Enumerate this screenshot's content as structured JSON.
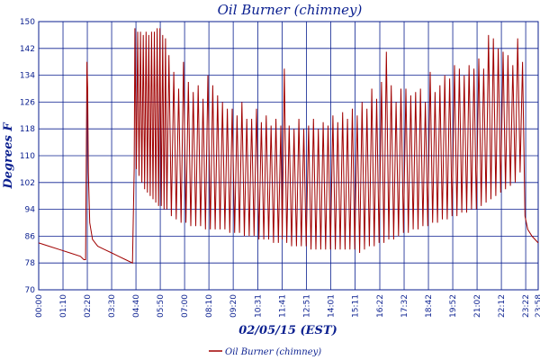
{
  "chart_data": {
    "type": "line",
    "title": "Oil Burner (chimney)",
    "xlabel": "02/05/15 (EST)",
    "ylabel": "Degrees F",
    "ylim": [
      70,
      150
    ],
    "yticks": [
      "150",
      "142",
      "134",
      "126",
      "118",
      "110",
      "102",
      "94",
      "86",
      "78",
      "70"
    ],
    "xticks": [
      "00:00",
      "01:10",
      "02:20",
      "03:30",
      "04:40",
      "05:50",
      "07:00",
      "08:10",
      "09:20",
      "10:31",
      "11:41",
      "12:51",
      "14:01",
      "15:11",
      "16:22",
      "17:32",
      "18:42",
      "19:52",
      "21:02",
      "22:12",
      "23:22",
      "23:58"
    ],
    "xlim": [
      "00:00",
      "23:58"
    ],
    "grid": true,
    "legend": "bottom-center",
    "colors": {
      "series": "#a00000",
      "grid": "#0a1f8f",
      "text": "#0a1f8f"
    },
    "series": [
      {
        "name": "Oil Burner (chimney)",
        "points": [
          [
            "00:00",
            84
          ],
          [
            "00:30",
            83
          ],
          [
            "01:00",
            82
          ],
          [
            "01:30",
            81
          ],
          [
            "02:00",
            80
          ],
          [
            "02:10",
            79
          ],
          [
            "02:15",
            79
          ],
          [
            "02:17",
            110
          ],
          [
            "02:19",
            138
          ],
          [
            "02:21",
            130
          ],
          [
            "02:23",
            105
          ],
          [
            "02:27",
            90
          ],
          [
            "02:35",
            85
          ],
          [
            "02:50",
            83
          ],
          [
            "03:10",
            82
          ],
          [
            "03:30",
            81
          ],
          [
            "03:50",
            80
          ],
          [
            "04:10",
            79
          ],
          [
            "04:30",
            78
          ],
          [
            "04:35",
            106
          ],
          [
            "04:37",
            148
          ],
          [
            "04:41",
            106
          ],
          [
            "04:45",
            147
          ],
          [
            "04:49",
            104
          ],
          [
            "04:53",
            147
          ],
          [
            "04:57",
            102
          ],
          [
            "05:01",
            146
          ],
          [
            "05:05",
            100
          ],
          [
            "05:09",
            147
          ],
          [
            "05:13",
            99
          ],
          [
            "05:17",
            146
          ],
          [
            "05:21",
            98
          ],
          [
            "05:25",
            147
          ],
          [
            "05:29",
            97
          ],
          [
            "05:33",
            147
          ],
          [
            "05:37",
            96
          ],
          [
            "05:41",
            148
          ],
          [
            "05:45",
            95
          ],
          [
            "05:49",
            148
          ],
          [
            "05:53",
            95
          ],
          [
            "05:57",
            146
          ],
          [
            "06:01",
            94
          ],
          [
            "06:05",
            145
          ],
          [
            "06:09",
            94
          ],
          [
            "06:15",
            140
          ],
          [
            "06:22",
            92
          ],
          [
            "06:29",
            135
          ],
          [
            "06:36",
            91
          ],
          [
            "06:43",
            130
          ],
          [
            "06:50",
            90
          ],
          [
            "06:57",
            138
          ],
          [
            "07:04",
            90
          ],
          [
            "07:11",
            132
          ],
          [
            "07:18",
            89
          ],
          [
            "07:25",
            129
          ],
          [
            "07:32",
            89
          ],
          [
            "07:39",
            131
          ],
          [
            "07:46",
            89
          ],
          [
            "07:53",
            127
          ],
          [
            "08:00",
            88
          ],
          [
            "08:07",
            134
          ],
          [
            "08:14",
            88
          ],
          [
            "08:21",
            131
          ],
          [
            "08:28",
            88
          ],
          [
            "08:35",
            128
          ],
          [
            "08:42",
            88
          ],
          [
            "08:49",
            126
          ],
          [
            "08:56",
            88
          ],
          [
            "09:03",
            124
          ],
          [
            "09:10",
            87
          ],
          [
            "09:17",
            124
          ],
          [
            "09:24",
            87
          ],
          [
            "09:31",
            122
          ],
          [
            "09:38",
            87
          ],
          [
            "09:45",
            126
          ],
          [
            "09:52",
            86
          ],
          [
            "09:59",
            121
          ],
          [
            "10:06",
            86
          ],
          [
            "10:13",
            121
          ],
          [
            "10:20",
            86
          ],
          [
            "10:27",
            124
          ],
          [
            "10:34",
            85
          ],
          [
            "10:41",
            120
          ],
          [
            "10:48",
            85
          ],
          [
            "10:55",
            122
          ],
          [
            "11:02",
            85
          ],
          [
            "11:09",
            119
          ],
          [
            "11:16",
            84
          ],
          [
            "11:23",
            121
          ],
          [
            "11:30",
            84
          ],
          [
            "11:37",
            119
          ],
          [
            "11:41",
            85
          ],
          [
            "11:47",
            136
          ],
          [
            "11:54",
            84
          ],
          [
            "12:01",
            119
          ],
          [
            "12:08",
            83
          ],
          [
            "12:15",
            118
          ],
          [
            "12:22",
            83
          ],
          [
            "12:29",
            121
          ],
          [
            "12:36",
            83
          ],
          [
            "12:43",
            118
          ],
          [
            "12:50",
            83
          ],
          [
            "12:57",
            119
          ],
          [
            "13:04",
            82
          ],
          [
            "13:11",
            121
          ],
          [
            "13:18",
            82
          ],
          [
            "13:25",
            118
          ],
          [
            "13:32",
            82
          ],
          [
            "13:39",
            120
          ],
          [
            "13:46",
            82
          ],
          [
            "13:53",
            119
          ],
          [
            "14:00",
            82
          ],
          [
            "14:07",
            122
          ],
          [
            "14:14",
            82
          ],
          [
            "14:21",
            120
          ],
          [
            "14:28",
            82
          ],
          [
            "14:35",
            123
          ],
          [
            "14:42",
            82
          ],
          [
            "14:49",
            121
          ],
          [
            "14:56",
            82
          ],
          [
            "15:03",
            124
          ],
          [
            "15:10",
            82
          ],
          [
            "15:17",
            122
          ],
          [
            "15:24",
            81
          ],
          [
            "15:31",
            126
          ],
          [
            "15:38",
            82
          ],
          [
            "15:45",
            124
          ],
          [
            "15:52",
            83
          ],
          [
            "15:59",
            130
          ],
          [
            "16:06",
            83
          ],
          [
            "16:13",
            127
          ],
          [
            "16:20",
            84
          ],
          [
            "16:27",
            132
          ],
          [
            "16:34",
            84
          ],
          [
            "16:41",
            141
          ],
          [
            "16:48",
            85
          ],
          [
            "16:55",
            131
          ],
          [
            "17:02",
            85
          ],
          [
            "17:09",
            126
          ],
          [
            "17:16",
            86
          ],
          [
            "17:23",
            130
          ],
          [
            "17:30",
            87
          ],
          [
            "17:37",
            130
          ],
          [
            "17:44",
            87
          ],
          [
            "17:51",
            128
          ],
          [
            "17:58",
            88
          ],
          [
            "18:05",
            129
          ],
          [
            "18:12",
            88
          ],
          [
            "18:19",
            130
          ],
          [
            "18:26",
            89
          ],
          [
            "18:33",
            126
          ],
          [
            "18:40",
            89
          ],
          [
            "18:47",
            135
          ],
          [
            "18:54",
            90
          ],
          [
            "19:01",
            129
          ],
          [
            "19:08",
            90
          ],
          [
            "19:15",
            131
          ],
          [
            "19:22",
            91
          ],
          [
            "19:29",
            134
          ],
          [
            "19:36",
            91
          ],
          [
            "19:43",
            133
          ],
          [
            "19:50",
            92
          ],
          [
            "19:57",
            137
          ],
          [
            "20:04",
            92
          ],
          [
            "20:11",
            136
          ],
          [
            "20:18",
            93
          ],
          [
            "20:25",
            134
          ],
          [
            "20:32",
            93
          ],
          [
            "20:39",
            137
          ],
          [
            "20:46",
            94
          ],
          [
            "20:53",
            136
          ],
          [
            "21:00",
            94
          ],
          [
            "21:07",
            139
          ],
          [
            "21:14",
            95
          ],
          [
            "21:21",
            136
          ],
          [
            "21:28",
            96
          ],
          [
            "21:35",
            146
          ],
          [
            "21:42",
            97
          ],
          [
            "21:49",
            145
          ],
          [
            "21:56",
            98
          ],
          [
            "22:03",
            142
          ],
          [
            "22:10",
            99
          ],
          [
            "22:17",
            141
          ],
          [
            "22:24",
            100
          ],
          [
            "22:31",
            140
          ],
          [
            "22:38",
            101
          ],
          [
            "22:45",
            137
          ],
          [
            "22:52",
            102
          ],
          [
            "22:59",
            145
          ],
          [
            "23:06",
            105
          ],
          [
            "23:13",
            138
          ],
          [
            "23:20",
            92
          ],
          [
            "23:28",
            88
          ],
          [
            "23:40",
            86
          ],
          [
            "23:58",
            84
          ]
        ]
      }
    ]
  }
}
